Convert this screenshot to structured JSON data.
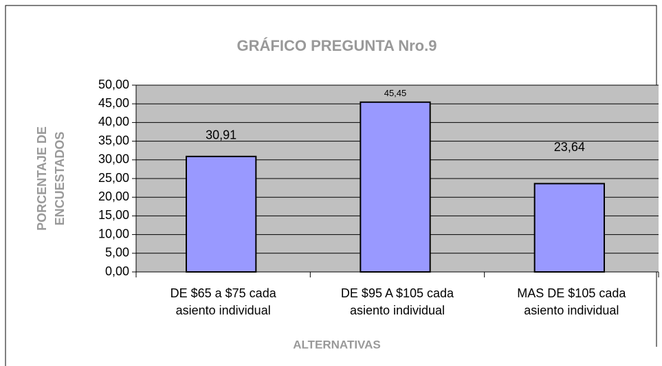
{
  "chart_data": {
    "type": "bar",
    "title": "GRÁFICO PREGUNTA Nro.9",
    "x_label": "ALTERNATIVAS",
    "y_label": "PORCENTAJE DE\nENCUESTADOS",
    "categories": [
      "DE $65 a $75 cada\nasiento individual",
      "DE $95 A $105 cada\nasiento individual",
      "MAS DE $105 cada\nasiento individual"
    ],
    "values": [
      30.91,
      45.45,
      23.64
    ],
    "value_labels": [
      "30,91",
      "45,45",
      "23,64"
    ],
    "color": "#9999ff",
    "ylim": [
      0,
      50
    ],
    "yticks": [
      {
        "value": 0,
        "label": "0,00"
      },
      {
        "value": 5,
        "label": "5,00"
      },
      {
        "value": 10,
        "label": "10,00"
      },
      {
        "value": 15,
        "label": "15,00"
      },
      {
        "value": 20,
        "label": "20,00"
      },
      {
        "value": 25,
        "label": "25,00"
      },
      {
        "value": 30,
        "label": "30,00"
      },
      {
        "value": 35,
        "label": "35,00"
      },
      {
        "value": 40,
        "label": "40,00"
      },
      {
        "value": 45,
        "label": "45,00"
      },
      {
        "value": 50,
        "label": "50,00"
      }
    ],
    "grid": true
  }
}
